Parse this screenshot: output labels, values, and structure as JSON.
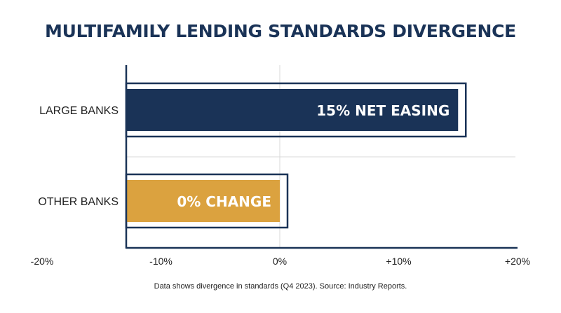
{
  "chart_data": {
    "type": "bar",
    "orientation": "horizontal",
    "title": "MULTIFAMILY LENDING STANDARDS DIVERGENCE",
    "categories": [
      "LARGE BANKS",
      "OTHER BANKS"
    ],
    "values": [
      15,
      0
    ],
    "data_labels": [
      "15% NET EASING",
      "0% CHANGE"
    ],
    "x_ticks": [
      {
        "value": -20,
        "label": "-20%"
      },
      {
        "value": -10,
        "label": "-10%"
      },
      {
        "value": 0,
        "label": "0%"
      },
      {
        "value": 10,
        "label": "+10%"
      },
      {
        "value": 20,
        "label": "+20%"
      }
    ],
    "xlim": [
      -20,
      20
    ],
    "grid": true,
    "legend": "none",
    "note": "Data shows divergence in standards (Q4 2023). Source: Industry Reports.",
    "colors": {
      "title": "#1a3357",
      "large_banks": "#1a3357",
      "other_banks": "#dba23f",
      "axis": "#1a3357",
      "grid": "#d9d9d9",
      "bar_label": "#ffffff"
    }
  }
}
